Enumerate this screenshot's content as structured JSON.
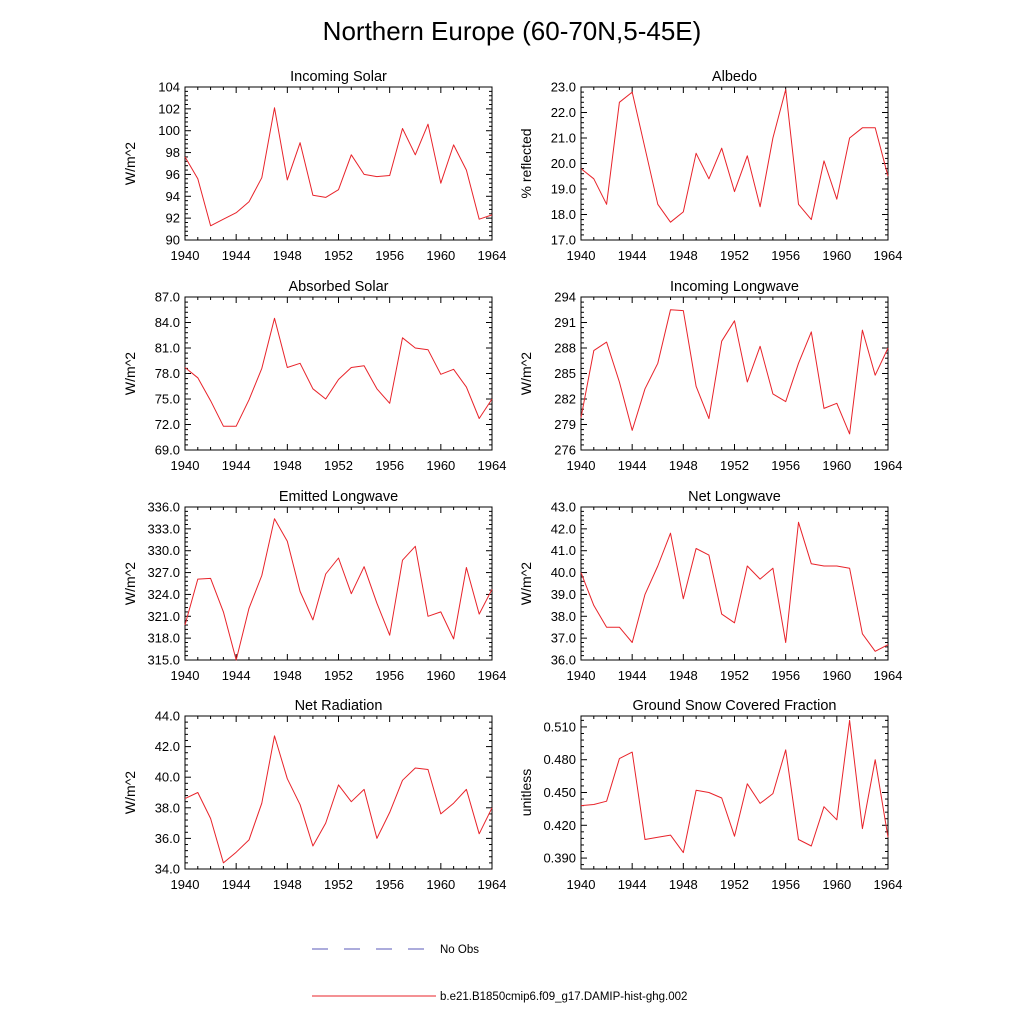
{
  "figure_title": "Northern Europe (60-70N,5-45E)",
  "legend": [
    {
      "label": "No Obs",
      "color": "#5a5ab8",
      "dash": "dashed"
    },
    {
      "label": "b.e21.B1850cmip6.f09_g17.DAMIP-hist-ghg.002",
      "color": "#e8232a",
      "dash": "solid"
    }
  ],
  "chart_data": [
    {
      "type": "line",
      "title": "Incoming Solar",
      "ylabel": "W/m^2",
      "xlim": [
        1940,
        1964
      ],
      "xticks": [
        "1940",
        "1944",
        "1948",
        "1952",
        "1956",
        "1960",
        "1964"
      ],
      "ylim": [
        90,
        104
      ],
      "yticks": [
        "90",
        "92",
        "94",
        "96",
        "98",
        "100",
        "102",
        "104"
      ],
      "series": [
        {
          "color": "#e8232a",
          "x": [
            1940,
            1941,
            1942,
            1943,
            1944,
            1945,
            1946,
            1947,
            1948,
            1949,
            1950,
            1951,
            1952,
            1953,
            1954,
            1955,
            1956,
            1957,
            1958,
            1959,
            1960,
            1961,
            1962,
            1963,
            1964
          ],
          "y": [
            97.6,
            95.6,
            91.3,
            91.9,
            92.5,
            93.5,
            95.7,
            102.1,
            95.5,
            98.9,
            94.1,
            93.9,
            94.6,
            97.8,
            96.0,
            95.8,
            95.9,
            100.2,
            97.8,
            100.6,
            95.2,
            98.7,
            96.4,
            91.9,
            92.3
          ]
        }
      ]
    },
    {
      "type": "line",
      "title": "Albedo",
      "ylabel": "% reflected",
      "xlim": [
        1940,
        1964
      ],
      "xticks": [
        "1940",
        "1944",
        "1948",
        "1952",
        "1956",
        "1960",
        "1964"
      ],
      "ylim": [
        17.0,
        23.0
      ],
      "yticks": [
        "17.0",
        "18.0",
        "19.0",
        "20.0",
        "21.0",
        "22.0",
        "23.0"
      ],
      "series": [
        {
          "color": "#e8232a",
          "x": [
            1940,
            1941,
            1942,
            1943,
            1944,
            1945,
            1946,
            1947,
            1948,
            1949,
            1950,
            1951,
            1952,
            1953,
            1954,
            1955,
            1956,
            1957,
            1958,
            1959,
            1960,
            1961,
            1962,
            1963,
            1964
          ],
          "y": [
            19.8,
            19.4,
            18.4,
            22.4,
            22.8,
            20.6,
            18.4,
            17.7,
            18.1,
            20.4,
            19.4,
            20.6,
            18.9,
            20.3,
            18.3,
            21.0,
            22.9,
            18.4,
            17.8,
            20.1,
            18.6,
            21.0,
            21.4,
            21.4,
            19.5
          ]
        }
      ]
    },
    {
      "type": "line",
      "title": "Absorbed Solar",
      "ylabel": "W/m^2",
      "xlim": [
        1940,
        1964
      ],
      "xticks": [
        "1940",
        "1944",
        "1948",
        "1952",
        "1956",
        "1960",
        "1964"
      ],
      "ylim": [
        69.0,
        87.0
      ],
      "yticks": [
        "69.0",
        "72.0",
        "75.0",
        "78.0",
        "81.0",
        "84.0",
        "87.0"
      ],
      "series": [
        {
          "color": "#e8232a",
          "x": [
            1940,
            1941,
            1942,
            1943,
            1944,
            1945,
            1946,
            1947,
            1948,
            1949,
            1950,
            1951,
            1952,
            1953,
            1954,
            1955,
            1956,
            1957,
            1958,
            1959,
            1960,
            1961,
            1962,
            1963,
            1964
          ],
          "y": [
            78.7,
            77.5,
            74.8,
            71.8,
            71.8,
            74.9,
            78.6,
            84.5,
            78.7,
            79.2,
            76.2,
            75.0,
            77.3,
            78.7,
            78.9,
            76.2,
            74.5,
            82.2,
            81.0,
            80.8,
            77.9,
            78.5,
            76.4,
            72.7,
            75.0
          ]
        }
      ]
    },
    {
      "type": "line",
      "title": "Incoming Longwave",
      "ylabel": "W/m^2",
      "xlim": [
        1940,
        1964
      ],
      "xticks": [
        "1940",
        "1944",
        "1948",
        "1952",
        "1956",
        "1960",
        "1964"
      ],
      "ylim": [
        276,
        294
      ],
      "yticks": [
        "276",
        "279",
        "282",
        "285",
        "288",
        "291",
        "294"
      ],
      "series": [
        {
          "color": "#e8232a",
          "x": [
            1940,
            1941,
            1942,
            1943,
            1944,
            1945,
            1946,
            1947,
            1948,
            1949,
            1950,
            1951,
            1952,
            1953,
            1954,
            1955,
            1956,
            1957,
            1958,
            1959,
            1960,
            1961,
            1962,
            1963,
            1964
          ],
          "y": [
            279.8,
            287.7,
            288.7,
            284.0,
            278.3,
            283.2,
            286.2,
            292.5,
            292.4,
            283.5,
            279.7,
            288.8,
            291.2,
            284.0,
            288.2,
            282.6,
            281.7,
            286.2,
            289.9,
            280.9,
            281.5,
            277.9,
            290.1,
            284.8,
            288.0
          ]
        }
      ]
    },
    {
      "type": "line",
      "title": "Emitted Longwave",
      "ylabel": "W/m^2",
      "xlim": [
        1940,
        1964
      ],
      "xticks": [
        "1940",
        "1944",
        "1948",
        "1952",
        "1956",
        "1960",
        "1964"
      ],
      "ylim": [
        315.0,
        336.0
      ],
      "yticks": [
        "315.0",
        "318.0",
        "321.0",
        "324.0",
        "327.0",
        "330.0",
        "333.0",
        "336.0"
      ],
      "series": [
        {
          "color": "#e8232a",
          "x": [
            1940,
            1941,
            1942,
            1943,
            1944,
            1945,
            1946,
            1947,
            1948,
            1949,
            1950,
            1951,
            1952,
            1953,
            1954,
            1955,
            1956,
            1957,
            1958,
            1959,
            1960,
            1961,
            1962,
            1963,
            1964
          ],
          "y": [
            319.8,
            326.1,
            326.2,
            321.6,
            315.0,
            322.1,
            326.6,
            334.4,
            331.3,
            324.4,
            320.5,
            326.8,
            329.0,
            324.1,
            327.8,
            322.8,
            318.4,
            328.7,
            330.6,
            321.0,
            321.6,
            317.9,
            327.7,
            321.3,
            324.7
          ]
        }
      ]
    },
    {
      "type": "line",
      "title": "Net Longwave",
      "ylabel": "W/m^2",
      "xlim": [
        1940,
        1964
      ],
      "xticks": [
        "1940",
        "1944",
        "1948",
        "1952",
        "1956",
        "1960",
        "1964"
      ],
      "ylim": [
        36.0,
        43.0
      ],
      "yticks": [
        "36.0",
        "37.0",
        "38.0",
        "39.0",
        "40.0",
        "41.0",
        "42.0",
        "43.0"
      ],
      "series": [
        {
          "color": "#e8232a",
          "x": [
            1940,
            1941,
            1942,
            1943,
            1944,
            1945,
            1946,
            1947,
            1948,
            1949,
            1950,
            1951,
            1952,
            1953,
            1954,
            1955,
            1956,
            1957,
            1958,
            1959,
            1960,
            1961,
            1962,
            1963,
            1964
          ],
          "y": [
            40.0,
            38.5,
            37.5,
            37.5,
            36.8,
            39.0,
            40.3,
            41.8,
            38.8,
            41.1,
            40.8,
            38.1,
            37.7,
            40.3,
            39.7,
            40.2,
            36.8,
            42.3,
            40.4,
            40.3,
            40.3,
            40.2,
            37.2,
            36.4,
            36.7
          ]
        }
      ]
    },
    {
      "type": "line",
      "title": "Net Radiation",
      "ylabel": "W/m^2",
      "xlim": [
        1940,
        1964
      ],
      "xticks": [
        "1940",
        "1944",
        "1948",
        "1952",
        "1956",
        "1960",
        "1964"
      ],
      "ylim": [
        34.0,
        44.0
      ],
      "yticks": [
        "34.0",
        "36.0",
        "38.0",
        "40.0",
        "42.0",
        "44.0"
      ],
      "series": [
        {
          "color": "#e8232a",
          "x": [
            1940,
            1941,
            1942,
            1943,
            1944,
            1945,
            1946,
            1947,
            1948,
            1949,
            1950,
            1951,
            1952,
            1953,
            1954,
            1955,
            1956,
            1957,
            1958,
            1959,
            1960,
            1961,
            1962,
            1963,
            1964
          ],
          "y": [
            38.6,
            39.0,
            37.3,
            34.4,
            35.1,
            35.9,
            38.3,
            42.7,
            39.9,
            38.2,
            35.5,
            37.0,
            39.5,
            38.4,
            39.2,
            36.0,
            37.7,
            39.8,
            40.6,
            40.5,
            37.6,
            38.3,
            39.2,
            36.3,
            38.0
          ]
        }
      ]
    },
    {
      "type": "line",
      "title": "Ground Snow Covered Fraction",
      "ylabel": "unitless",
      "xlim": [
        1940,
        1964
      ],
      "xticks": [
        "1940",
        "1944",
        "1948",
        "1952",
        "1956",
        "1960",
        "1964"
      ],
      "ylim": [
        0.38,
        0.52
      ],
      "yticks": [
        "0.390",
        "0.420",
        "0.450",
        "0.480",
        "0.510"
      ],
      "series": [
        {
          "color": "#e8232a",
          "x": [
            1940,
            1941,
            1942,
            1943,
            1944,
            1945,
            1946,
            1947,
            1948,
            1949,
            1950,
            1951,
            1952,
            1953,
            1954,
            1955,
            1956,
            1957,
            1958,
            1959,
            1960,
            1961,
            1962,
            1963,
            1964
          ],
          "y": [
            0.438,
            0.439,
            0.442,
            0.481,
            0.487,
            0.407,
            0.409,
            0.411,
            0.395,
            0.452,
            0.45,
            0.445,
            0.41,
            0.458,
            0.44,
            0.449,
            0.489,
            0.407,
            0.401,
            0.437,
            0.425,
            0.516,
            0.417,
            0.48,
            0.409
          ]
        }
      ]
    }
  ]
}
